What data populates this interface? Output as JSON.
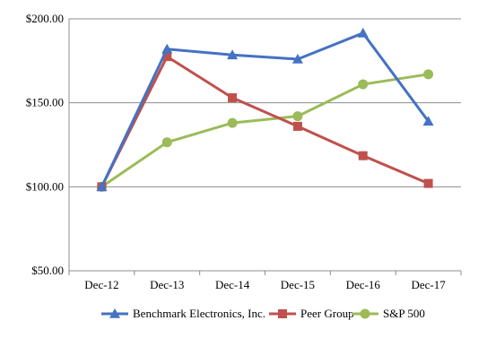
{
  "chart_data": {
    "type": "line",
    "categories": [
      "Dec-12",
      "Dec-13",
      "Dec-14",
      "Dec-15",
      "Dec-16",
      "Dec-17"
    ],
    "ylim": [
      50,
      200
    ],
    "yticks": [
      50,
      100,
      150,
      200
    ],
    "ytick_labels": [
      "$50.00",
      "$100.00",
      "$150.00",
      "$200.00"
    ],
    "grid": "horizontal",
    "legend_position": "bottom",
    "series": [
      {
        "name": "Benchmark Electronics, Inc.",
        "color": "#4472C4",
        "marker": "triangle",
        "values": [
          100,
          182,
          178.5,
          176,
          191.5,
          139
        ]
      },
      {
        "name": "Peer Group",
        "color": "#C0504D",
        "marker": "square",
        "values": [
          100,
          177.5,
          153,
          136,
          118.5,
          102
        ]
      },
      {
        "name": "S&P 500",
        "color": "#9BBB59",
        "marker": "circle",
        "values": [
          100,
          126.5,
          138,
          142,
          161,
          167
        ]
      }
    ]
  }
}
